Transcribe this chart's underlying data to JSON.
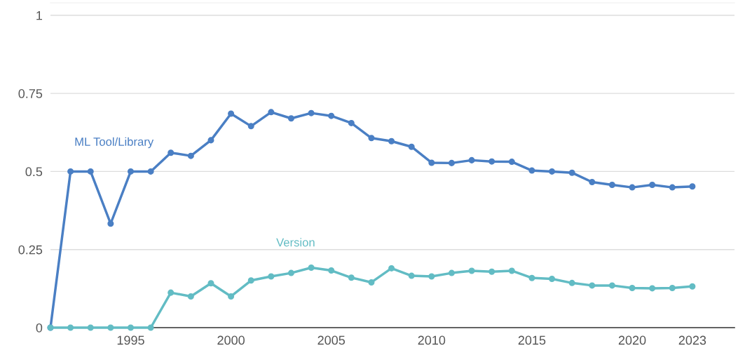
{
  "chart_data": {
    "type": "line",
    "x": [
      1991,
      1992,
      1993,
      1994,
      1995,
      1996,
      1997,
      1998,
      1999,
      2000,
      2001,
      2002,
      2003,
      2004,
      2005,
      2006,
      2007,
      2008,
      2009,
      2010,
      2011,
      2012,
      2013,
      2014,
      2015,
      2016,
      2017,
      2018,
      2019,
      2020,
      2021,
      2022,
      2023
    ],
    "series": [
      {
        "name": "ML Tool/Library",
        "color": "#4a7fc4",
        "values": [
          0,
          0.5,
          0.5,
          0.333,
          0.5,
          0.5,
          0.56,
          0.55,
          0.6,
          0.685,
          0.645,
          0.69,
          0.67,
          0.687,
          0.678,
          0.655,
          0.607,
          0.597,
          0.579,
          0.528,
          0.527,
          0.536,
          0.532,
          0.531,
          0.503,
          0.5,
          0.496,
          0.466,
          0.457,
          0.449,
          0.457,
          0.449,
          0.452
        ]
      },
      {
        "name": "Version",
        "color": "#62bcc4",
        "values": [
          0,
          0,
          0,
          0,
          0,
          0,
          0.112,
          0.1,
          0.142,
          0.1,
          0.151,
          0.164,
          0.175,
          0.192,
          0.183,
          0.16,
          0.145,
          0.19,
          0.166,
          0.164,
          0.175,
          0.182,
          0.179,
          0.182,
          0.159,
          0.156,
          0.143,
          0.135,
          0.135,
          0.127,
          0.126,
          0.127,
          0.132
        ]
      }
    ],
    "xlim": [
      1991,
      2025.1
    ],
    "xticks": [
      1995,
      2000,
      2005,
      2010,
      2015,
      2020,
      2023
    ],
    "ylim": [
      0,
      1.04
    ],
    "yticks": [
      0,
      {
        "value": 0.25,
        "label": "0.25"
      },
      {
        "value": 0.5,
        "label": "0.5"
      },
      {
        "value": 0.75,
        "label": "0.75"
      },
      1
    ],
    "grid": "y",
    "marker": "circle",
    "line_style": "solid",
    "legend": false
  }
}
